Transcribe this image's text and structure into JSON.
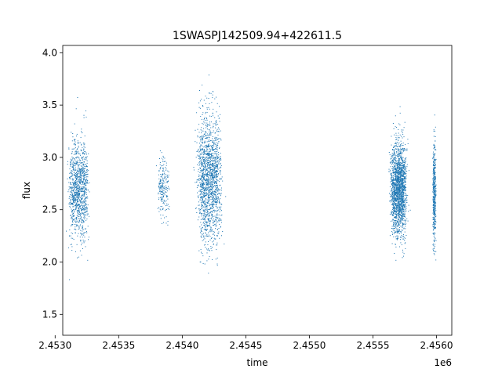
{
  "chart_data": {
    "type": "scatter",
    "title": "1SWASPJ142509.94+422611.5",
    "xlabel": "time",
    "ylabel": "flux",
    "x_offset_label": "1e6",
    "xlim": [
      2.45306,
      2.45612
    ],
    "ylim": [
      1.3,
      4.07
    ],
    "x_ticks": [
      2.453,
      2.4535,
      2.454,
      2.4545,
      2.455,
      2.4555,
      2.456
    ],
    "x_tick_labels": [
      "2.4530",
      "2.4535",
      "2.4540",
      "2.4545",
      "2.4550",
      "2.4555",
      "2.4560"
    ],
    "y_ticks": [
      1.5,
      2.0,
      2.5,
      3.0,
      3.5,
      4.0
    ],
    "y_tick_labels": [
      "1.5",
      "2.0",
      "2.5",
      "3.0",
      "3.5",
      "4.0"
    ],
    "grid": false,
    "marker_color": "#1f77b4",
    "clusters": [
      {
        "x_center": 2.45318,
        "x_width": 0.00012,
        "y_mean": 2.7,
        "y_sd": 0.23,
        "n": 1100
      },
      {
        "x_center": 2.45385,
        "x_width": 7e-05,
        "y_mean": 2.7,
        "y_sd": 0.14,
        "n": 220
      },
      {
        "x_center": 2.45421,
        "x_width": 0.00015,
        "y_mean": 2.8,
        "y_sd": 0.3,
        "n": 1700
      },
      {
        "x_center": 2.4557,
        "x_width": 0.0001,
        "y_mean": 2.7,
        "y_sd": 0.22,
        "n": 1900
      },
      {
        "x_center": 2.45598,
        "x_width": 2e-05,
        "y_mean": 2.65,
        "y_sd": 0.25,
        "n": 450
      }
    ]
  }
}
